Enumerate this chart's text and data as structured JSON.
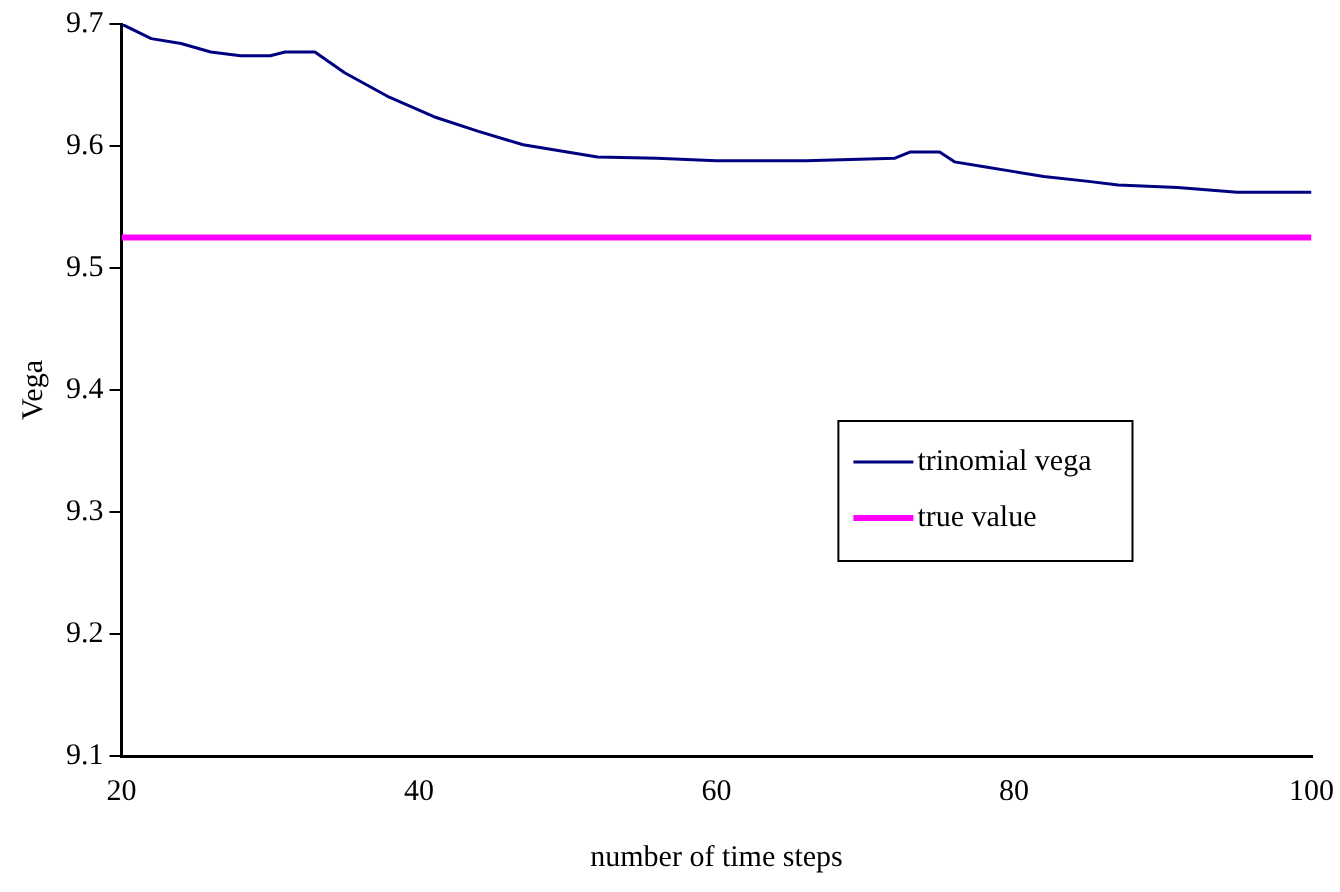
{
  "chart_data": {
    "type": "line",
    "xlabel": "number of time steps",
    "ylabel": "Vega",
    "xlim": [
      20,
      100
    ],
    "xticks": [
      20,
      40,
      60,
      80,
      100
    ],
    "ylim": [
      9.1,
      9.7
    ],
    "yticks": [
      {
        "value": 9.1,
        "label": "9.1"
      },
      {
        "value": 9.2,
        "label": "9.2"
      },
      {
        "value": 9.3,
        "label": "9.3"
      },
      {
        "value": 9.4,
        "label": "9.4"
      },
      {
        "value": 9.5,
        "label": "9.5"
      },
      {
        "value": 9.6,
        "label": "9.6"
      },
      {
        "value": 9.7,
        "label": "9.7"
      }
    ],
    "grid": false,
    "legend": "right",
    "marker": "none",
    "series": [
      {
        "name": "trinomial vega",
        "color": "#000080",
        "x": [
          20,
          22,
          24,
          26,
          28,
          30,
          31,
          33,
          35,
          38,
          41,
          44,
          47,
          52,
          56,
          60,
          66,
          72,
          73,
          75,
          76,
          78,
          80,
          82,
          85,
          87,
          91,
          95,
          100
        ],
        "values": [
          9.7,
          9.688,
          9.684,
          9.677,
          9.674,
          9.674,
          9.677,
          9.677,
          9.66,
          9.64,
          9.624,
          9.612,
          9.601,
          9.591,
          9.59,
          9.588,
          9.588,
          9.59,
          9.595,
          9.595,
          9.587,
          9.583,
          9.579,
          9.575,
          9.571,
          9.568,
          9.566,
          9.562,
          9.562
        ]
      },
      {
        "name": "true value",
        "color": "#ff00ff",
        "x": [
          20,
          100
        ],
        "values": [
          9.525,
          9.525
        ]
      }
    ]
  }
}
